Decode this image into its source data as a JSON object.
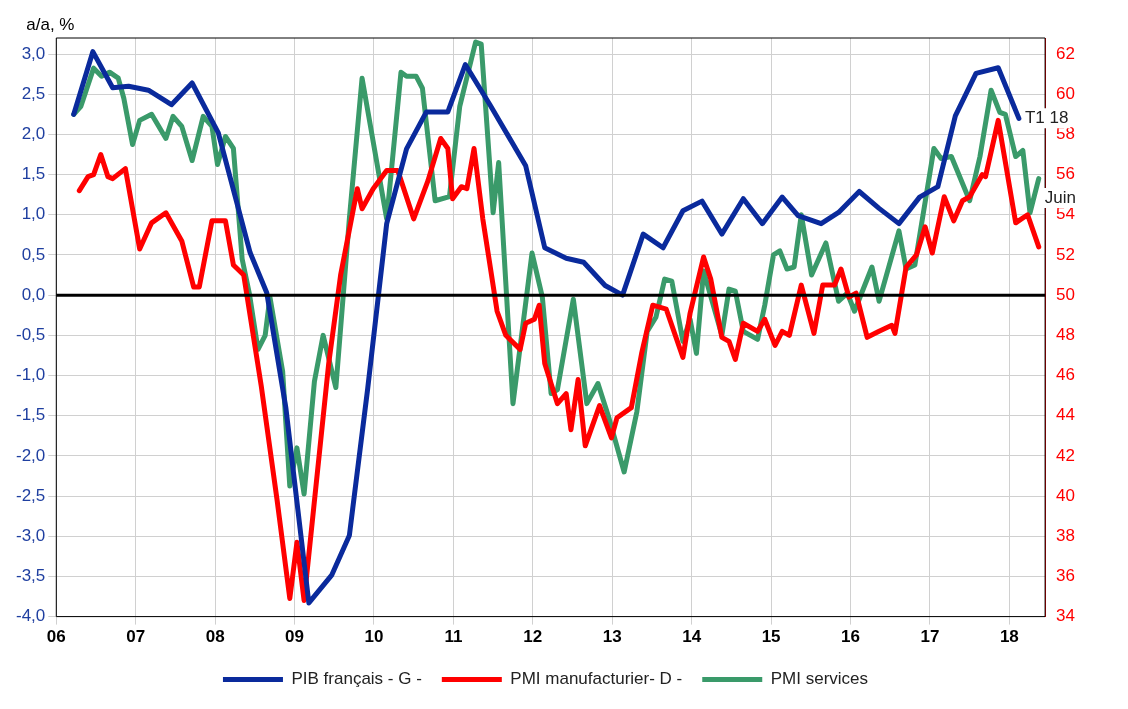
{
  "chart_data": {
    "type": "line",
    "ylabel": "a/a, %",
    "legend": "bottom",
    "grid": true,
    "marker": "none",
    "line_style": "solid",
    "xlim": [
      2006,
      2018.45
    ],
    "xticks": [
      {
        "value": 2006,
        "label": "06"
      },
      {
        "value": 2007,
        "label": "07"
      },
      {
        "value": 2008,
        "label": "08"
      },
      {
        "value": 2009,
        "label": "09"
      },
      {
        "value": 2010,
        "label": "10"
      },
      {
        "value": 2011,
        "label": "11"
      },
      {
        "value": 2012,
        "label": "12"
      },
      {
        "value": 2013,
        "label": "13"
      },
      {
        "value": 2014,
        "label": "14"
      },
      {
        "value": 2015,
        "label": "15"
      },
      {
        "value": 2016,
        "label": "16"
      },
      {
        "value": 2017,
        "label": "17"
      },
      {
        "value": 2018,
        "label": "18"
      }
    ],
    "ylim": [
      -4,
      3.2
    ],
    "yticks": [
      {
        "value": -4,
        "label": "-4,0"
      },
      {
        "value": -3.5,
        "label": "-3,5"
      },
      {
        "value": -3,
        "label": "-3,0"
      },
      {
        "value": -2.5,
        "label": "-2,5"
      },
      {
        "value": -2,
        "label": "-2,0"
      },
      {
        "value": -1.5,
        "label": "-1,5"
      },
      {
        "value": -1,
        "label": "-1,0"
      },
      {
        "value": -0.5,
        "label": "-0,5"
      },
      {
        "value": 0,
        "label": "0,0"
      },
      {
        "value": 0.5,
        "label": "0,5"
      },
      {
        "value": 1,
        "label": "1,0"
      },
      {
        "value": 1.5,
        "label": "1,5"
      },
      {
        "value": 2,
        "label": "2,0"
      },
      {
        "value": 2.5,
        "label": "2,5"
      },
      {
        "value": 3,
        "label": "3,0"
      }
    ],
    "y2lim": [
      34,
      62.8
    ],
    "y2ticks": [
      34,
      36,
      38,
      40,
      42,
      44,
      46,
      48,
      50,
      52,
      54,
      56,
      58,
      60,
      62
    ],
    "ref_lines": [
      {
        "axis": "y",
        "value": 0,
        "color": "#000000"
      }
    ],
    "annotations": [
      {
        "text": "T1 18",
        "x": 2018.12,
        "y": 2.2
      },
      {
        "text": "Juin",
        "x": 2018.37,
        "y": 1.21
      }
    ],
    "series": [
      {
        "name": "PIB français - G -",
        "color": "#0a2a9c",
        "x": [
          2006.22,
          2006.46,
          2006.71,
          2006.91,
          2007.16,
          2007.45,
          2007.71,
          2008.04,
          2008.44,
          2008.65,
          2008.89,
          2009.18,
          2009.47,
          2009.69,
          2009.92,
          2010.16,
          2010.41,
          2010.66,
          2010.93,
          2011.15,
          2011.46,
          2011.91,
          2012.15,
          2012.42,
          2012.64,
          2012.91,
          2013.13,
          2013.39,
          2013.64,
          2013.89,
          2014.13,
          2014.38,
          2014.65,
          2014.89,
          2015.14,
          2015.34,
          2015.63,
          2015.85,
          2016.11,
          2016.36,
          2016.61,
          2016.87,
          2017.1,
          2017.32,
          2017.58,
          2017.86,
          2018.12
        ],
        "values": [
          2.25,
          3.03,
          2.58,
          2.6,
          2.55,
          2.37,
          2.64,
          2.02,
          0.53,
          0.03,
          -1.4,
          -3.83,
          -3.48,
          -2.99,
          -1.17,
          0.89,
          1.82,
          2.28,
          2.28,
          2.87,
          2.37,
          1.61,
          0.59,
          0.46,
          0.41,
          0.12,
          0,
          0.76,
          0.59,
          1.05,
          1.17,
          0.76,
          1.2,
          0.89,
          1.22,
          0.99,
          0.89,
          1.03,
          1.29,
          1.08,
          0.89,
          1.22,
          1.35,
          2.23,
          2.76,
          2.83,
          2.2
        ]
      },
      {
        "name": "PMI manufacturier- D -",
        "color": "#ff0000",
        "axis": "y2",
        "x": [
          2006.29,
          2006.4,
          2006.47,
          2006.56,
          2006.65,
          2006.71,
          2006.87,
          2007.05,
          2007.2,
          2007.38,
          2007.58,
          2007.73,
          2007.8,
          2007.96,
          2008.13,
          2008.23,
          2008.36,
          2008.58,
          2008.78,
          2008.94,
          2009.03,
          2009.12,
          2009.43,
          2009.58,
          2009.79,
          2009.85,
          2009.99,
          2010.16,
          2010.3,
          2010.5,
          2010.68,
          2010.84,
          2010.93,
          2010.99,
          2011.1,
          2011.17,
          2011.26,
          2011.37,
          2011.48,
          2011.55,
          2011.66,
          2011.84,
          2011.91,
          2012.02,
          2012.08,
          2012.15,
          2012.31,
          2012.42,
          2012.48,
          2012.57,
          2012.66,
          2012.84,
          2012.99,
          2013.06,
          2013.24,
          2013.37,
          2013.51,
          2013.68,
          2013.89,
          2013.98,
          2014.15,
          2014.24,
          2014.38,
          2014.47,
          2014.55,
          2014.65,
          2014.83,
          2014.92,
          2015.05,
          2015.14,
          2015.23,
          2015.38,
          2015.54,
          2015.65,
          2015.8,
          2015.88,
          2015.98,
          2016.07,
          2016.21,
          2016.36,
          2016.52,
          2016.56,
          2016.7,
          2016.83,
          2016.94,
          2017.03,
          2017.18,
          2017.3,
          2017.41,
          2017.5,
          2017.66,
          2017.7,
          2017.86,
          2018.08,
          2018.23,
          2018.37
        ],
        "values": [
          55.2,
          55.9,
          56,
          57,
          55.9,
          55.8,
          56.3,
          52.3,
          53.6,
          54.1,
          52.7,
          50.4,
          50.4,
          53.7,
          53.7,
          51.5,
          51,
          45.5,
          39.8,
          34.9,
          37.7,
          34.8,
          46.6,
          51,
          55.3,
          54.3,
          55.3,
          56.2,
          56.2,
          53.8,
          55.7,
          57.8,
          57.3,
          54.8,
          55.4,
          55.3,
          57.3,
          53.8,
          51,
          49.2,
          48,
          47.3,
          48.6,
          48.8,
          49.5,
          46.6,
          44.6,
          45.1,
          43.3,
          45.8,
          42.5,
          44.5,
          42.9,
          43.9,
          44.4,
          47.1,
          49.5,
          49.3,
          46.9,
          49.1,
          51.9,
          50.8,
          47.9,
          47.7,
          46.8,
          48.6,
          48.2,
          48.8,
          47.5,
          48.2,
          48,
          50.5,
          48.1,
          50.5,
          50.5,
          51.3,
          49.9,
          50.1,
          47.9,
          48.2,
          48.5,
          48.1,
          51.4,
          52,
          53.4,
          52.1,
          54.9,
          53.7,
          54.7,
          54.9,
          56,
          55.9,
          58.7,
          53.6,
          54,
          52.4
        ]
      },
      {
        "name": "PMI services",
        "color": "#3a9a6a",
        "axis": "y2",
        "x": [
          2006.22,
          2006.31,
          2006.47,
          2006.57,
          2006.67,
          2006.78,
          2006.85,
          2006.96,
          2007.05,
          2007.2,
          2007.38,
          2007.47,
          2007.58,
          2007.71,
          2007.85,
          2007.96,
          2008.03,
          2008.13,
          2008.23,
          2008.34,
          2008.43,
          2008.54,
          2008.63,
          2008.69,
          2008.85,
          2008.94,
          2009.03,
          2009.12,
          2009.25,
          2009.36,
          2009.52,
          2009.69,
          2009.85,
          2010.16,
          2010.34,
          2010.41,
          2010.53,
          2010.61,
          2010.77,
          2010.95,
          2011.08,
          2011.28,
          2011.35,
          2011.5,
          2011.57,
          2011.75,
          2011.99,
          2012.12,
          2012.23,
          2012.31,
          2012.51,
          2012.68,
          2012.82,
          2012.95,
          2013.15,
          2013.31,
          2013.44,
          2013.55,
          2013.66,
          2013.75,
          2013.89,
          2013.98,
          2014.06,
          2014.15,
          2014.38,
          2014.47,
          2014.55,
          2014.65,
          2014.83,
          2014.92,
          2015.03,
          2015.11,
          2015.2,
          2015.29,
          2015.38,
          2015.51,
          2015.69,
          2015.85,
          2015.96,
          2016.05,
          2016.27,
          2016.36,
          2016.61,
          2016.7,
          2016.81,
          2017.05,
          2017.14,
          2017.27,
          2017.5,
          2017.63,
          2017.77,
          2017.88,
          2017.95,
          2018.08,
          2018.17,
          2018.26,
          2018.37
        ],
        "values": [
          59,
          59.4,
          61.3,
          60.9,
          61.1,
          60.8,
          59.8,
          57.5,
          58.7,
          59,
          57.8,
          58.9,
          58.4,
          56.7,
          58.9,
          58.4,
          56.5,
          57.9,
          57.3,
          51.8,
          50.1,
          47.3,
          48,
          49.9,
          46.2,
          40.5,
          42.4,
          40.1,
          45.7,
          48,
          45.4,
          53.8,
          60.8,
          53.8,
          61.1,
          60.9,
          60.9,
          60.3,
          54.7,
          54.9,
          59.4,
          62.6,
          62.5,
          54.1,
          56.6,
          44.6,
          52.1,
          49.9,
          45.1,
          45.3,
          49.8,
          44.6,
          45.6,
          44,
          41.2,
          44.2,
          48.2,
          48.9,
          50.8,
          50.7,
          47.7,
          48.8,
          47.1,
          51.2,
          48,
          50.3,
          50.2,
          48.2,
          47.8,
          49.5,
          52,
          52.2,
          51.3,
          51.4,
          54,
          51,
          52.6,
          49.7,
          50.1,
          49.2,
          51.4,
          49.7,
          53.2,
          51.3,
          51.5,
          57.3,
          56.8,
          56.9,
          54.7,
          56.9,
          60.2,
          59.1,
          59,
          56.9,
          57.2,
          54.1,
          55.8
        ]
      }
    ]
  }
}
